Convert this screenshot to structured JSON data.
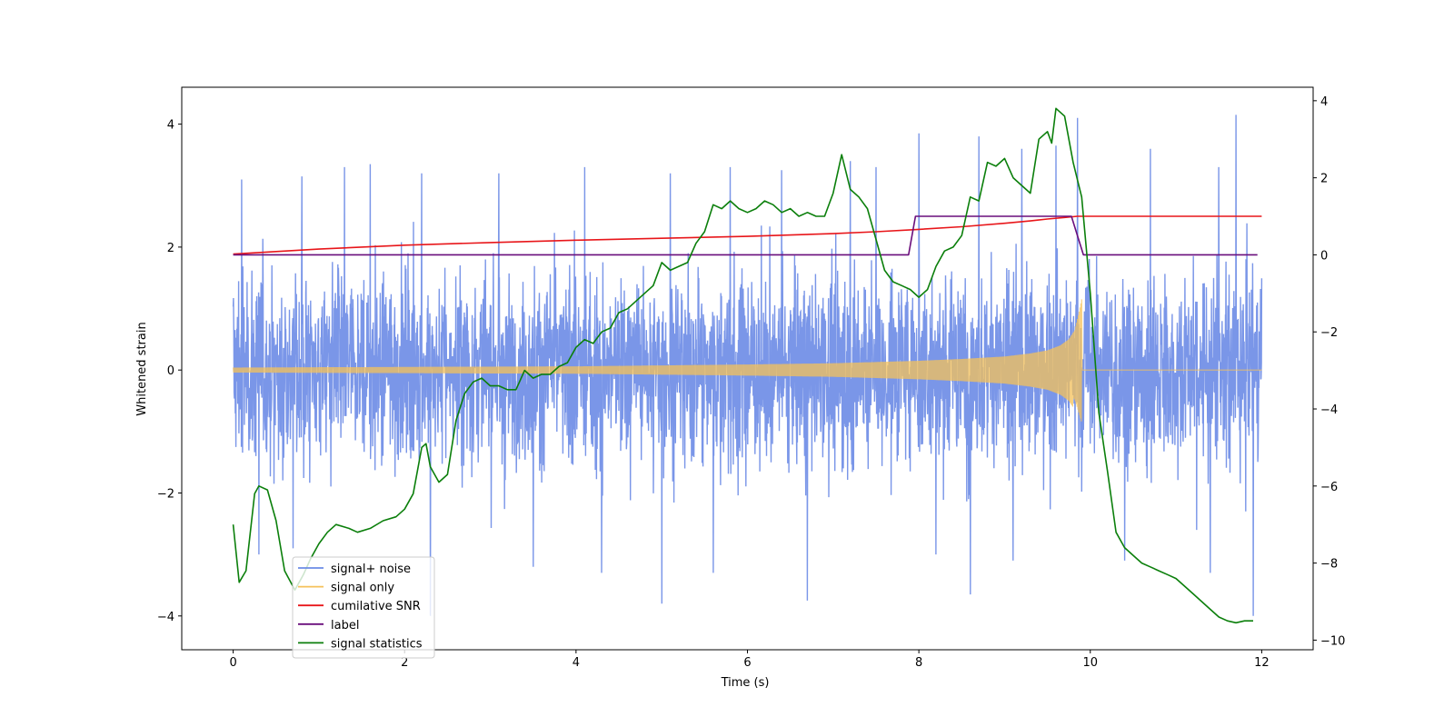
{
  "chart_data": {
    "type": "line",
    "xlabel": "Time (s)",
    "ylabel": "Whitened strain",
    "xlim": [
      -0.6,
      12.6
    ],
    "ylim_left": [
      -4.55,
      4.6
    ],
    "ylim_right": [
      -10.25,
      4.35
    ],
    "x_ticks": [
      0,
      2,
      4,
      6,
      8,
      10,
      12
    ],
    "y_left_ticks": [
      -4,
      -2,
      0,
      2,
      4
    ],
    "y_right_ticks": [
      -10,
      -8,
      -6,
      -4,
      -2,
      0,
      2,
      4
    ],
    "legend_position": "lower-left",
    "series": [
      {
        "name": "signal+ noise",
        "axis": "left",
        "color": "#6b8be6",
        "description_values": {
          "duration": [
            0,
            12
          ],
          "typical_range": [
            -2.2,
            2.6
          ],
          "spikes": [
            [
              0.1,
              3.1
            ],
            [
              0.8,
              3.15
            ],
            [
              1.3,
              3.3
            ],
            [
              1.6,
              3.35
            ],
            [
              2.2,
              3.2
            ],
            [
              3.1,
              3.2
            ],
            [
              3.5,
              3.1
            ],
            [
              4.1,
              3.3
            ],
            [
              5.1,
              3.2
            ],
            [
              5.8,
              3.3
            ],
            [
              6.4,
              3.25
            ],
            [
              7.2,
              3.4
            ],
            [
              7.5,
              3.3
            ],
            [
              8.0,
              3.85
            ],
            [
              8.7,
              3.8
            ],
            [
              9.2,
              3.6
            ],
            [
              9.6,
              3.65
            ],
            [
              9.85,
              4.1
            ],
            [
              10.7,
              3.6
            ],
            [
              11.5,
              3.3
            ],
            [
              11.7,
              4.15
            ],
            [
              0.3,
              -3.0
            ],
            [
              0.7,
              -2.9
            ],
            [
              2.3,
              -4.0
            ],
            [
              3.5,
              -3.2
            ],
            [
              4.3,
              -3.3
            ],
            [
              5.0,
              -3.8
            ],
            [
              5.6,
              -3.3
            ],
            [
              6.7,
              -3.75
            ],
            [
              8.2,
              -3.0
            ],
            [
              8.6,
              -3.65
            ],
            [
              9.1,
              -3.1
            ],
            [
              10.4,
              -3.1
            ],
            [
              11.4,
              -3.3
            ],
            [
              11.9,
              -4.0
            ]
          ]
        }
      },
      {
        "name": "signal only",
        "axis": "left",
        "color": "#f5c15a",
        "x": [
          0,
          2,
          4,
          6,
          7,
          8,
          8.5,
          9,
          9.3,
          9.5,
          9.65,
          9.75,
          9.82,
          9.87,
          9.9,
          12
        ],
        "envelope": [
          0.04,
          0.05,
          0.06,
          0.09,
          0.11,
          0.15,
          0.18,
          0.22,
          0.27,
          0.32,
          0.4,
          0.5,
          0.65,
          0.95,
          1.15,
          0.0
        ]
      },
      {
        "name": "cumilative SNR",
        "axis": "right",
        "color": "#e8161a",
        "x": [
          0,
          1,
          2,
          3,
          4,
          5,
          6,
          7,
          7.5,
          8,
          8.5,
          9,
          9.3,
          9.5,
          9.7,
          9.85,
          9.9,
          10,
          12
        ],
        "values": [
          0.02,
          0.15,
          0.25,
          0.32,
          0.38,
          0.43,
          0.48,
          0.55,
          0.6,
          0.66,
          0.73,
          0.82,
          0.88,
          0.93,
          0.97,
          1.0,
          1.0,
          1.0,
          1.0
        ]
      },
      {
        "name": "label",
        "axis": "right",
        "color": "#6a0e7c",
        "x": [
          0,
          7.88,
          7.96,
          9.78,
          9.92,
          11.95
        ],
        "values": [
          0,
          0,
          1,
          1,
          0,
          0
        ]
      },
      {
        "name": "signal statistics",
        "axis": "right",
        "color": "#0b7f0b",
        "x": [
          0.0,
          0.07,
          0.15,
          0.25,
          0.3,
          0.4,
          0.5,
          0.6,
          0.72,
          0.82,
          0.9,
          1.0,
          1.1,
          1.2,
          1.35,
          1.45,
          1.6,
          1.75,
          1.9,
          2.0,
          2.1,
          2.2,
          2.25,
          2.3,
          2.4,
          2.5,
          2.6,
          2.7,
          2.8,
          2.9,
          3.0,
          3.1,
          3.2,
          3.3,
          3.4,
          3.5,
          3.6,
          3.7,
          3.8,
          3.9,
          4.0,
          4.1,
          4.2,
          4.3,
          4.4,
          4.5,
          4.6,
          4.7,
          4.8,
          4.9,
          5.0,
          5.1,
          5.2,
          5.3,
          5.4,
          5.5,
          5.6,
          5.7,
          5.8,
          5.9,
          6.0,
          6.1,
          6.2,
          6.3,
          6.4,
          6.5,
          6.6,
          6.7,
          6.8,
          6.9,
          7.0,
          7.1,
          7.2,
          7.3,
          7.4,
          7.5,
          7.6,
          7.7,
          7.8,
          7.9,
          8.0,
          8.1,
          8.2,
          8.3,
          8.4,
          8.5,
          8.6,
          8.7,
          8.8,
          8.9,
          9.0,
          9.1,
          9.2,
          9.3,
          9.4,
          9.5,
          9.55,
          9.6,
          9.7,
          9.8,
          9.9,
          10.0,
          10.1,
          10.2,
          10.3,
          10.4,
          10.5,
          10.6,
          10.7,
          10.8,
          10.9,
          11.0,
          11.1,
          11.2,
          11.3,
          11.4,
          11.5,
          11.6,
          11.7,
          11.8,
          11.9
        ],
        "values": [
          -7.0,
          -8.5,
          -8.2,
          -6.2,
          -6.0,
          -6.1,
          -6.9,
          -8.2,
          -8.7,
          -8.3,
          -7.9,
          -7.5,
          -7.2,
          -7.0,
          -7.1,
          -7.2,
          -7.1,
          -6.9,
          -6.8,
          -6.6,
          -6.2,
          -5.0,
          -4.9,
          -5.5,
          -5.9,
          -5.7,
          -4.3,
          -3.6,
          -3.3,
          -3.2,
          -3.4,
          -3.4,
          -3.5,
          -3.5,
          -3.0,
          -3.2,
          -3.1,
          -3.1,
          -2.9,
          -2.8,
          -2.4,
          -2.2,
          -2.3,
          -2.0,
          -1.9,
          -1.5,
          -1.4,
          -1.2,
          -1.0,
          -0.8,
          -0.2,
          -0.4,
          -0.3,
          -0.2,
          0.3,
          0.6,
          1.3,
          1.2,
          1.4,
          1.2,
          1.1,
          1.2,
          1.4,
          1.3,
          1.1,
          1.2,
          1.0,
          1.1,
          1.0,
          1.0,
          1.6,
          2.6,
          1.7,
          1.5,
          1.2,
          0.4,
          -0.4,
          -0.7,
          -0.8,
          -0.9,
          -1.1,
          -0.9,
          -0.3,
          0.1,
          0.2,
          0.5,
          1.5,
          1.4,
          2.4,
          2.3,
          2.5,
          2.0,
          1.8,
          1.6,
          3.0,
          3.2,
          2.9,
          3.8,
          3.6,
          2.4,
          1.5,
          -1.0,
          -4.1,
          -5.6,
          -7.2,
          -7.6,
          -7.8,
          -8.0,
          -8.1,
          -8.2,
          -8.3,
          -8.4,
          -8.6,
          -8.8,
          -9.0,
          -9.2,
          -9.4,
          -9.5,
          -9.55,
          -9.5,
          -9.5
        ]
      }
    ]
  }
}
